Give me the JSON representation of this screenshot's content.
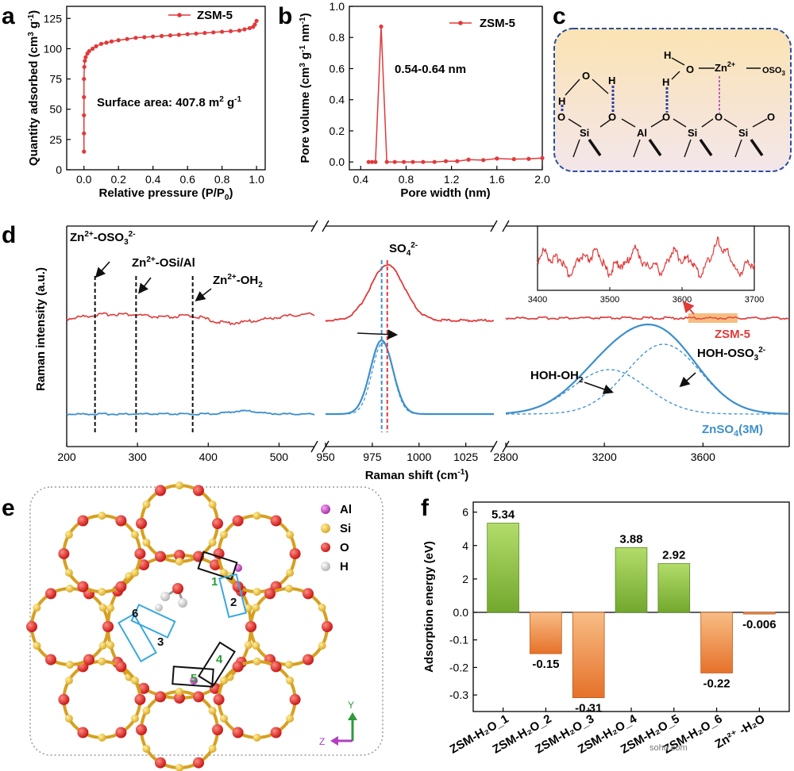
{
  "colors": {
    "red": "#e03a3a",
    "blue": "#3d8fcc",
    "green_top": "#a6d45a",
    "green_bottom": "#6ea62c",
    "orange_top": "#f7b47a",
    "orange_bottom": "#e8762e",
    "frame_blue": "#2a4f9e"
  },
  "panel_labels": [
    "a",
    "b",
    "c",
    "d",
    "e",
    "f"
  ],
  "chart_data": [
    {
      "id": "a",
      "type": "line",
      "xlabel": "Relative pressure (P/P",
      "xlabel_sub": "0",
      "xlabel_tail": ")",
      "ylabel": "Quantity adsorbed (cm",
      "ylabel_sup": "3",
      "ylabel_tail": " g",
      "ylabel_sup2": "-1",
      "ylabel_end": ")",
      "xlim": [
        -0.1,
        1.05
      ],
      "ylim": [
        0,
        135
      ],
      "xticks": [
        "0.0",
        "0.2",
        "0.4",
        "0.6",
        "0.8",
        "1.0"
      ],
      "xtick_values": [
        0,
        0.2,
        0.4,
        0.6,
        0.8,
        1.0
      ],
      "yticks": [
        "0",
        "25",
        "50",
        "75",
        "100",
        "125"
      ],
      "ytick_values": [
        0,
        25,
        50,
        75,
        100,
        125
      ],
      "legend": "ZSM-5",
      "annotation": "Surface area:  407.8 m",
      "annotation_sup": "2",
      "annotation_tail": " g",
      "annotation_sup2": "-1",
      "series": [
        {
          "name": "ZSM-5",
          "x": [
            0.0,
            0.0,
            0.0,
            0.0,
            0.0,
            0.002,
            0.005,
            0.01,
            0.02,
            0.03,
            0.05,
            0.07,
            0.1,
            0.13,
            0.16,
            0.2,
            0.25,
            0.3,
            0.35,
            0.4,
            0.45,
            0.5,
            0.55,
            0.6,
            0.65,
            0.7,
            0.75,
            0.8,
            0.85,
            0.9,
            0.93,
            0.96,
            0.98,
            0.99,
            1.0
          ],
          "y": [
            15,
            30,
            45,
            60,
            75,
            85,
            90,
            93,
            96,
            98,
            100,
            102,
            104,
            105,
            106,
            107,
            108,
            109,
            109.5,
            110,
            110.5,
            111,
            111.5,
            112,
            112.5,
            113,
            113.5,
            114,
            114.5,
            115,
            116,
            117,
            118,
            120,
            123
          ]
        }
      ]
    },
    {
      "id": "b",
      "type": "line",
      "xlabel": "Pore width (nm)",
      "ylabel": "Pore volume (cm",
      "ylabel_sup": "3",
      "ylabel_tail": " g",
      "ylabel_sup2": "-1",
      "ylabel_mid": " nm",
      "ylabel_sup3": "-1",
      "ylabel_end": ")",
      "xlim": [
        0.3,
        2.0
      ],
      "ylim": [
        -0.05,
        1.0
      ],
      "xticks": [
        "0.4",
        "0.8",
        "1.2",
        "1.6",
        "2.0"
      ],
      "xtick_values": [
        0.4,
        0.8,
        1.2,
        1.6,
        2.0
      ],
      "yticks": [
        "0.0",
        "0.2",
        "0.4",
        "0.6",
        "0.8",
        "1.0"
      ],
      "ytick_values": [
        0,
        0.2,
        0.4,
        0.6,
        0.8,
        1.0
      ],
      "legend": "ZSM-5",
      "annotation": "0.54-0.64 nm",
      "series": [
        {
          "name": "ZSM-5",
          "x": [
            0.47,
            0.5,
            0.53,
            0.58,
            0.63,
            0.7,
            0.78,
            0.86,
            0.95,
            1.05,
            1.15,
            1.25,
            1.35,
            1.48,
            1.6,
            1.75,
            1.88,
            2.0
          ],
          "y": [
            0.0,
            0.0,
            0.0,
            0.87,
            0.0,
            0.0,
            0.0,
            0.0,
            0.0,
            0.0,
            0.005,
            0.005,
            0.015,
            0.012,
            0.022,
            0.018,
            0.02,
            0.025
          ]
        }
      ]
    },
    {
      "id": "d",
      "type": "line",
      "xlabel": "Raman shift (cm",
      "xlabel_sup": "-1",
      "xlabel_tail": ")",
      "ylabel": "Raman intensity (a.u.)",
      "segments": [
        {
          "xlim": [
            200,
            550
          ],
          "xticks": [
            "200",
            "300",
            "400",
            "500"
          ],
          "xtick_values": [
            200,
            300,
            400,
            500
          ]
        },
        {
          "xlim": [
            950,
            1040
          ],
          "xticks": [
            "950",
            "975",
            "1000",
            "1025"
          ],
          "xtick_values": [
            950,
            975,
            1000,
            1025
          ]
        },
        {
          "xlim": [
            2800,
            3950
          ],
          "xticks": [
            "2800",
            "3200",
            "3600"
          ],
          "xtick_values": [
            2800,
            3200,
            3600
          ]
        }
      ],
      "inset": {
        "xlim": [
          3400,
          3700
        ],
        "xticks": [
          "3400",
          "3500",
          "3600",
          "3700"
        ],
        "xtick_values": [
          3400,
          3500,
          3600,
          3700
        ]
      },
      "dashed_markers": [
        240,
        298,
        378
      ],
      "so4_markers": [
        980,
        983
      ],
      "series_labels": {
        "zsm": "ZSM-5",
        "znso4": "ZnSO",
        "znso4_sub": "4",
        "znso4_tail": "(3M)"
      },
      "annotations": {
        "a1": "Zn",
        "a1_sup": "2+",
        "a1_tail": "-OSO",
        "a1_sub": "3",
        "a1_sup2": "2-",
        "a2": "Zn",
        "a2_sup": "2+",
        "a2_tail": "-OSi/Al",
        "a3": "Zn",
        "a3_sup": "2+",
        "a3_tail": "-OH",
        "a3_sub": "2",
        "a4": "SO",
        "a4_sub": "4",
        "a4_sup": "2-",
        "a5": "HOH-OH",
        "a5_sub": "2",
        "a6": "HOH-OSO",
        "a6_sub": "3",
        "a6_sup": "2-"
      }
    },
    {
      "id": "f",
      "type": "bar",
      "ylabel": "Adsorption energy (eV)",
      "categories": [
        "ZSM-H₂O_1",
        "ZSM-H₂O_2",
        "ZSM-H₂O_3",
        "ZSM-H₂O_4",
        "ZSM-H₂O_5",
        "ZSM-H₂O_6",
        "Zn²⁺ -H₂O"
      ],
      "values": [
        5.34,
        -0.15,
        -0.31,
        3.88,
        2.92,
        -0.22,
        -0.006
      ],
      "value_labels": [
        "5.34",
        "-0.15",
        "-0.31",
        "3.88",
        "2.92",
        "-0.22",
        "-0.006"
      ],
      "upper_yticks": [
        "0.0",
        "2",
        "4",
        "6"
      ],
      "upper_tick_values": [
        0,
        2,
        4,
        6
      ],
      "lower_yticks": [
        "-0.1",
        "-0.2",
        "-0.3"
      ],
      "lower_tick_values": [
        -0.1,
        -0.2,
        -0.3
      ],
      "upper_ylim": [
        0,
        6.6
      ],
      "lower_ylim": [
        -0.36,
        0
      ]
    }
  ],
  "panel_c": {
    "labels": {
      "H1": "H",
      "O1": "O",
      "H2": "H",
      "H3": "H",
      "O2": "O",
      "H4": "H",
      "Zn": "Zn",
      "Zn_sup": "2+",
      "OSO": "OSO",
      "OSO_sub": "3",
      "Ob1": "O",
      "Si1": "Si",
      "Ob2": "O",
      "Al": "Al",
      "Ob3": "O",
      "Si2": "Si",
      "Ob4": "O",
      "Si3": "Si",
      "Ob5": "O"
    }
  },
  "panel_e": {
    "legend": [
      "Al",
      "Si",
      "O",
      "H"
    ],
    "site_labels": [
      "1",
      "2",
      "3",
      "4",
      "5",
      "6"
    ],
    "axes": {
      "y": "Y",
      "z": "Z"
    }
  },
  "watermark": "sohu.com"
}
